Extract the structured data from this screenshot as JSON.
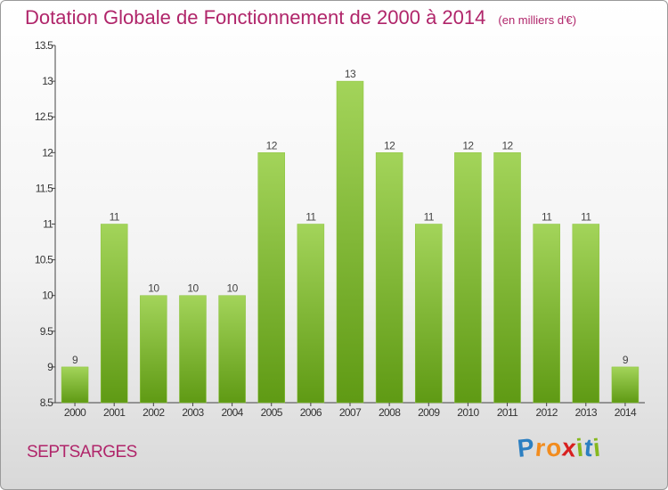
{
  "title": "Dotation Globale de Fonctionnement de 2000 à 2014",
  "subtitle": "(en milliers d'€)",
  "commune": "SEPTSARGES",
  "brand": {
    "letters": [
      "P",
      "r",
      "o",
      "x",
      "i",
      "t",
      "i"
    ],
    "colors": [
      "#2c7fc1",
      "#f28c1e",
      "#f28c1e",
      "#d8201f",
      "#86b81e",
      "#2c7fc1",
      "#86b81e"
    ]
  },
  "colors": {
    "bar_top": "#a3d45a",
    "bar_bottom": "#5f9a14",
    "accent": "#b0256a"
  },
  "chart_data": {
    "type": "bar",
    "categories": [
      "2000",
      "2001",
      "2002",
      "2003",
      "2004",
      "2005",
      "2006",
      "2007",
      "2008",
      "2009",
      "2010",
      "2011",
      "2012",
      "2013",
      "2014"
    ],
    "values": [
      9,
      11,
      10,
      10,
      10,
      12,
      11,
      13,
      12,
      11,
      12,
      12,
      11,
      11,
      9
    ],
    "ylim": [
      8.5,
      13.5
    ],
    "yticks": [
      "8.5",
      "9",
      "9.5",
      "10",
      "10.5",
      "11",
      "11.5",
      "12",
      "12.5",
      "13",
      "13.5"
    ],
    "title": "Dotation Globale de Fonctionnement de 2000 à 2014",
    "xlabel": "",
    "ylabel": "",
    "grid": false
  }
}
